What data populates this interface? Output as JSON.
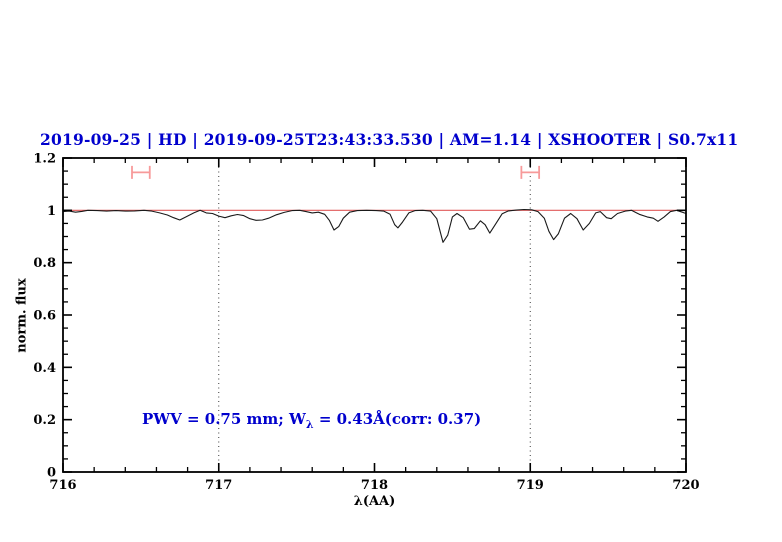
{
  "chart_data": {
    "type": "line",
    "title": "2019-09-25 | HD | 2019-09-25T23:43:33.530 | AM=1.14 | XSHOOTER | S0.7x11",
    "title_color": "#0000cd",
    "xlabel": "λ(AA)",
    "ylabel": "norm. flux",
    "xlim": [
      716,
      720
    ],
    "ylim": [
      0,
      1.2
    ],
    "x_ticks": {
      "majors": [
        {
          "value": 716,
          "label": "716"
        },
        {
          "value": 717,
          "label": "717"
        },
        {
          "value": 718,
          "label": "718"
        },
        {
          "value": 719,
          "label": "719"
        },
        {
          "value": 720,
          "label": "720"
        }
      ],
      "minor_step": 0.2
    },
    "y_ticks": {
      "majors": [
        {
          "value": 0,
          "label": "0"
        },
        {
          "value": 0.2,
          "label": "0.2"
        },
        {
          "value": 0.4,
          "label": "0.4"
        },
        {
          "value": 0.6,
          "label": "0.6"
        },
        {
          "value": 0.8,
          "label": "0.8"
        },
        {
          "value": 1,
          "label": "1"
        },
        {
          "value": 1.2,
          "label": "1.2"
        }
      ],
      "minor_step": 0.05
    },
    "vertical_dotted_lines": [
      717,
      719
    ],
    "continuum_line": {
      "y": 1.0,
      "color": "#e05a5a"
    },
    "range_markers": [
      {
        "x_center": 716.5,
        "x_half_width": 0.057,
        "y": 1.145,
        "color": "#f79a9a"
      },
      {
        "x_center": 719.0,
        "x_half_width": 0.057,
        "y": 1.145,
        "color": "#f79a9a"
      }
    ],
    "annotation": {
      "part1": "PWV = 0.75 mm; W",
      "sub": "λ",
      "part2": " = 0.43Å(corr: 0.37)",
      "color": "#0000cd"
    },
    "series": [
      {
        "name": "spectrum",
        "color": "#1a1a1a",
        "x": [
          716.0,
          716.04,
          716.08,
          716.12,
          716.16,
          716.22,
          716.28,
          716.34,
          716.4,
          716.46,
          716.52,
          716.57,
          716.62,
          716.67,
          716.71,
          716.75,
          716.79,
          716.84,
          716.88,
          716.92,
          716.96,
          717.0,
          717.04,
          717.08,
          717.12,
          717.16,
          717.2,
          717.24,
          717.28,
          717.32,
          717.37,
          717.42,
          717.47,
          717.52,
          717.56,
          717.6,
          717.64,
          717.68,
          717.71,
          717.74,
          717.77,
          717.8,
          717.84,
          717.89,
          717.95,
          718.01,
          718.06,
          718.1,
          718.13,
          718.15,
          718.18,
          718.22,
          718.26,
          718.31,
          718.36,
          718.4,
          718.44,
          718.47,
          718.5,
          718.53,
          718.57,
          718.61,
          718.64,
          718.68,
          718.71,
          718.74,
          718.78,
          718.82,
          718.86,
          718.91,
          718.96,
          719.01,
          719.05,
          719.09,
          719.12,
          719.15,
          719.18,
          719.22,
          719.26,
          719.3,
          719.34,
          719.38,
          719.42,
          719.45,
          719.49,
          719.52,
          719.56,
          719.61,
          719.65,
          719.7,
          719.75,
          719.79,
          719.82,
          719.86,
          719.9,
          719.94,
          720.0
        ],
        "y": [
          0.995,
          0.997,
          0.993,
          0.996,
          1.0,
          0.999,
          0.997,
          0.999,
          0.997,
          0.998,
          1.0,
          0.997,
          0.99,
          0.982,
          0.972,
          0.963,
          0.975,
          0.99,
          1.0,
          0.99,
          0.988,
          0.978,
          0.972,
          0.979,
          0.984,
          0.98,
          0.968,
          0.962,
          0.963,
          0.97,
          0.983,
          0.992,
          0.999,
          1.0,
          0.995,
          0.99,
          0.993,
          0.985,
          0.962,
          0.925,
          0.938,
          0.97,
          0.993,
          0.999,
          1.0,
          0.999,
          0.997,
          0.985,
          0.945,
          0.933,
          0.955,
          0.99,
          0.999,
          1.0,
          0.997,
          0.968,
          0.878,
          0.905,
          0.975,
          0.988,
          0.972,
          0.928,
          0.93,
          0.96,
          0.945,
          0.913,
          0.95,
          0.987,
          0.998,
          1.001,
          1.003,
          1.002,
          0.995,
          0.97,
          0.92,
          0.888,
          0.91,
          0.97,
          0.988,
          0.968,
          0.925,
          0.95,
          0.99,
          0.995,
          0.972,
          0.968,
          0.988,
          0.997,
          1.0,
          0.985,
          0.975,
          0.97,
          0.958,
          0.975,
          0.995,
          1.0,
          0.988
        ]
      }
    ]
  }
}
